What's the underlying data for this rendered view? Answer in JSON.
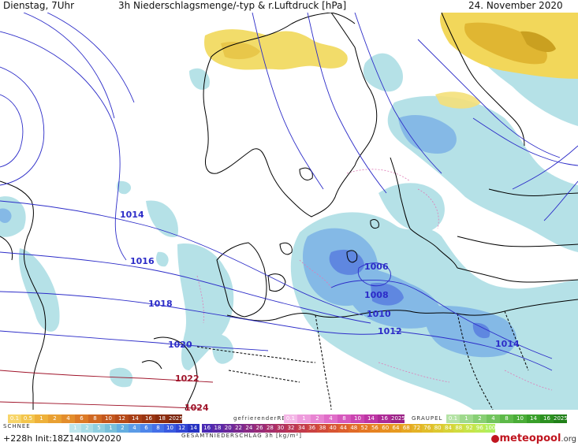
{
  "header": {
    "day_time": "Dienstag, 7Uhr",
    "title": "3h Niederschlagsmenge/-typ & r.Luftdruck [hPa]",
    "date": "24. November 2020"
  },
  "isobars": [
    {
      "label": "1006"
    },
    {
      "label": "1008"
    },
    {
      "label": "1010"
    },
    {
      "label": "1012"
    },
    {
      "label": "1014"
    },
    {
      "label": "1014"
    },
    {
      "label": "1016"
    },
    {
      "label": "1018"
    },
    {
      "label": "1020"
    },
    {
      "label": "1022"
    },
    {
      "label": "1024"
    }
  ],
  "legend": {
    "rain_scale": {
      "values": [
        "0.1",
        "0.5",
        "1",
        "2",
        "4",
        "6",
        "8",
        "10",
        "12",
        "14",
        "16",
        "18",
        "2025+"
      ],
      "colors": [
        "#f7d56a",
        "#f3c54c",
        "#eeb13a",
        "#e9a032",
        "#e38d2c",
        "#dc7a27",
        "#d06822",
        "#c3571d",
        "#b64a19",
        "#a83f16",
        "#993512",
        "#8a2c0f",
        "#7a240c"
      ]
    },
    "freezing_rain_label": "gefrierenderREGEN",
    "freezing_rain_scale": {
      "values": [
        "0.1",
        "1",
        "2",
        "4",
        "8",
        "10",
        "14",
        "16",
        "2025+"
      ],
      "colors": [
        "#f4b6e6",
        "#ee9bdc",
        "#e884d2",
        "#e06dc8",
        "#d658bd",
        "#cb45b1",
        "#bd35a4",
        "#ad2a96",
        "#9b2186"
      ]
    },
    "graupel_label": "GRAUPEL",
    "graupel_scale": {
      "values": [
        "0.1",
        "1",
        "2",
        "4",
        "8",
        "10",
        "14",
        "16",
        "2025+"
      ],
      "colors": [
        "#b5e3a6",
        "#9fd98d",
        "#88cf74",
        "#72c45d",
        "#5db948",
        "#4aad37",
        "#399f2a",
        "#2c9020",
        "#208018"
      ]
    },
    "snow_label": "SCHNEE",
    "snow_scale": {
      "values": [
        "1",
        "2",
        "5",
        "1",
        "2",
        "4",
        "6",
        "8",
        "10",
        "12",
        "14"
      ],
      "colors": [
        "#bfe6ec",
        "#a8dce6",
        "#90cfe0",
        "#79c0da",
        "#65aee0",
        "#5b9be6",
        "#4f86ea",
        "#4570e8",
        "#3b5be0",
        "#3146d4",
        "#2733c2"
      ]
    },
    "total_scale": {
      "values": [
        "16",
        "18",
        "20",
        "22",
        "24",
        "26",
        "28",
        "30",
        "32",
        "34",
        "36",
        "38",
        "40",
        "44",
        "48",
        "52",
        "56",
        "60",
        "64",
        "68",
        "72",
        "76",
        "80",
        "84",
        "88",
        "92",
        "96",
        "100"
      ],
      "colors": [
        "#4a2ab3",
        "#5a2aa8",
        "#6a2a9c",
        "#7a2a90",
        "#8a2b84",
        "#992c78",
        "#a52e6c",
        "#b03160",
        "#ba3555",
        "#c33b4b",
        "#cb4242",
        "#d24b3a",
        "#d85533",
        "#dd602d",
        "#e16b28",
        "#e47724",
        "#e68322",
        "#e78f21",
        "#e79b21",
        "#e6a723",
        "#e4b326",
        "#e1be2b",
        "#ddc931",
        "#d7d338",
        "#d0dc40",
        "#c7e449",
        "#bdea54",
        "#b0ef60"
      ]
    },
    "total_label": "GESAMTNIEDERSCHLAG  3h  [kg/m²]"
  },
  "footer": {
    "forecast": "+228h",
    "init": "Init:18Z14NOV2020"
  },
  "logo": {
    "brand": "meteopool",
    "tld": ".org",
    "accent": "#c0151f"
  }
}
